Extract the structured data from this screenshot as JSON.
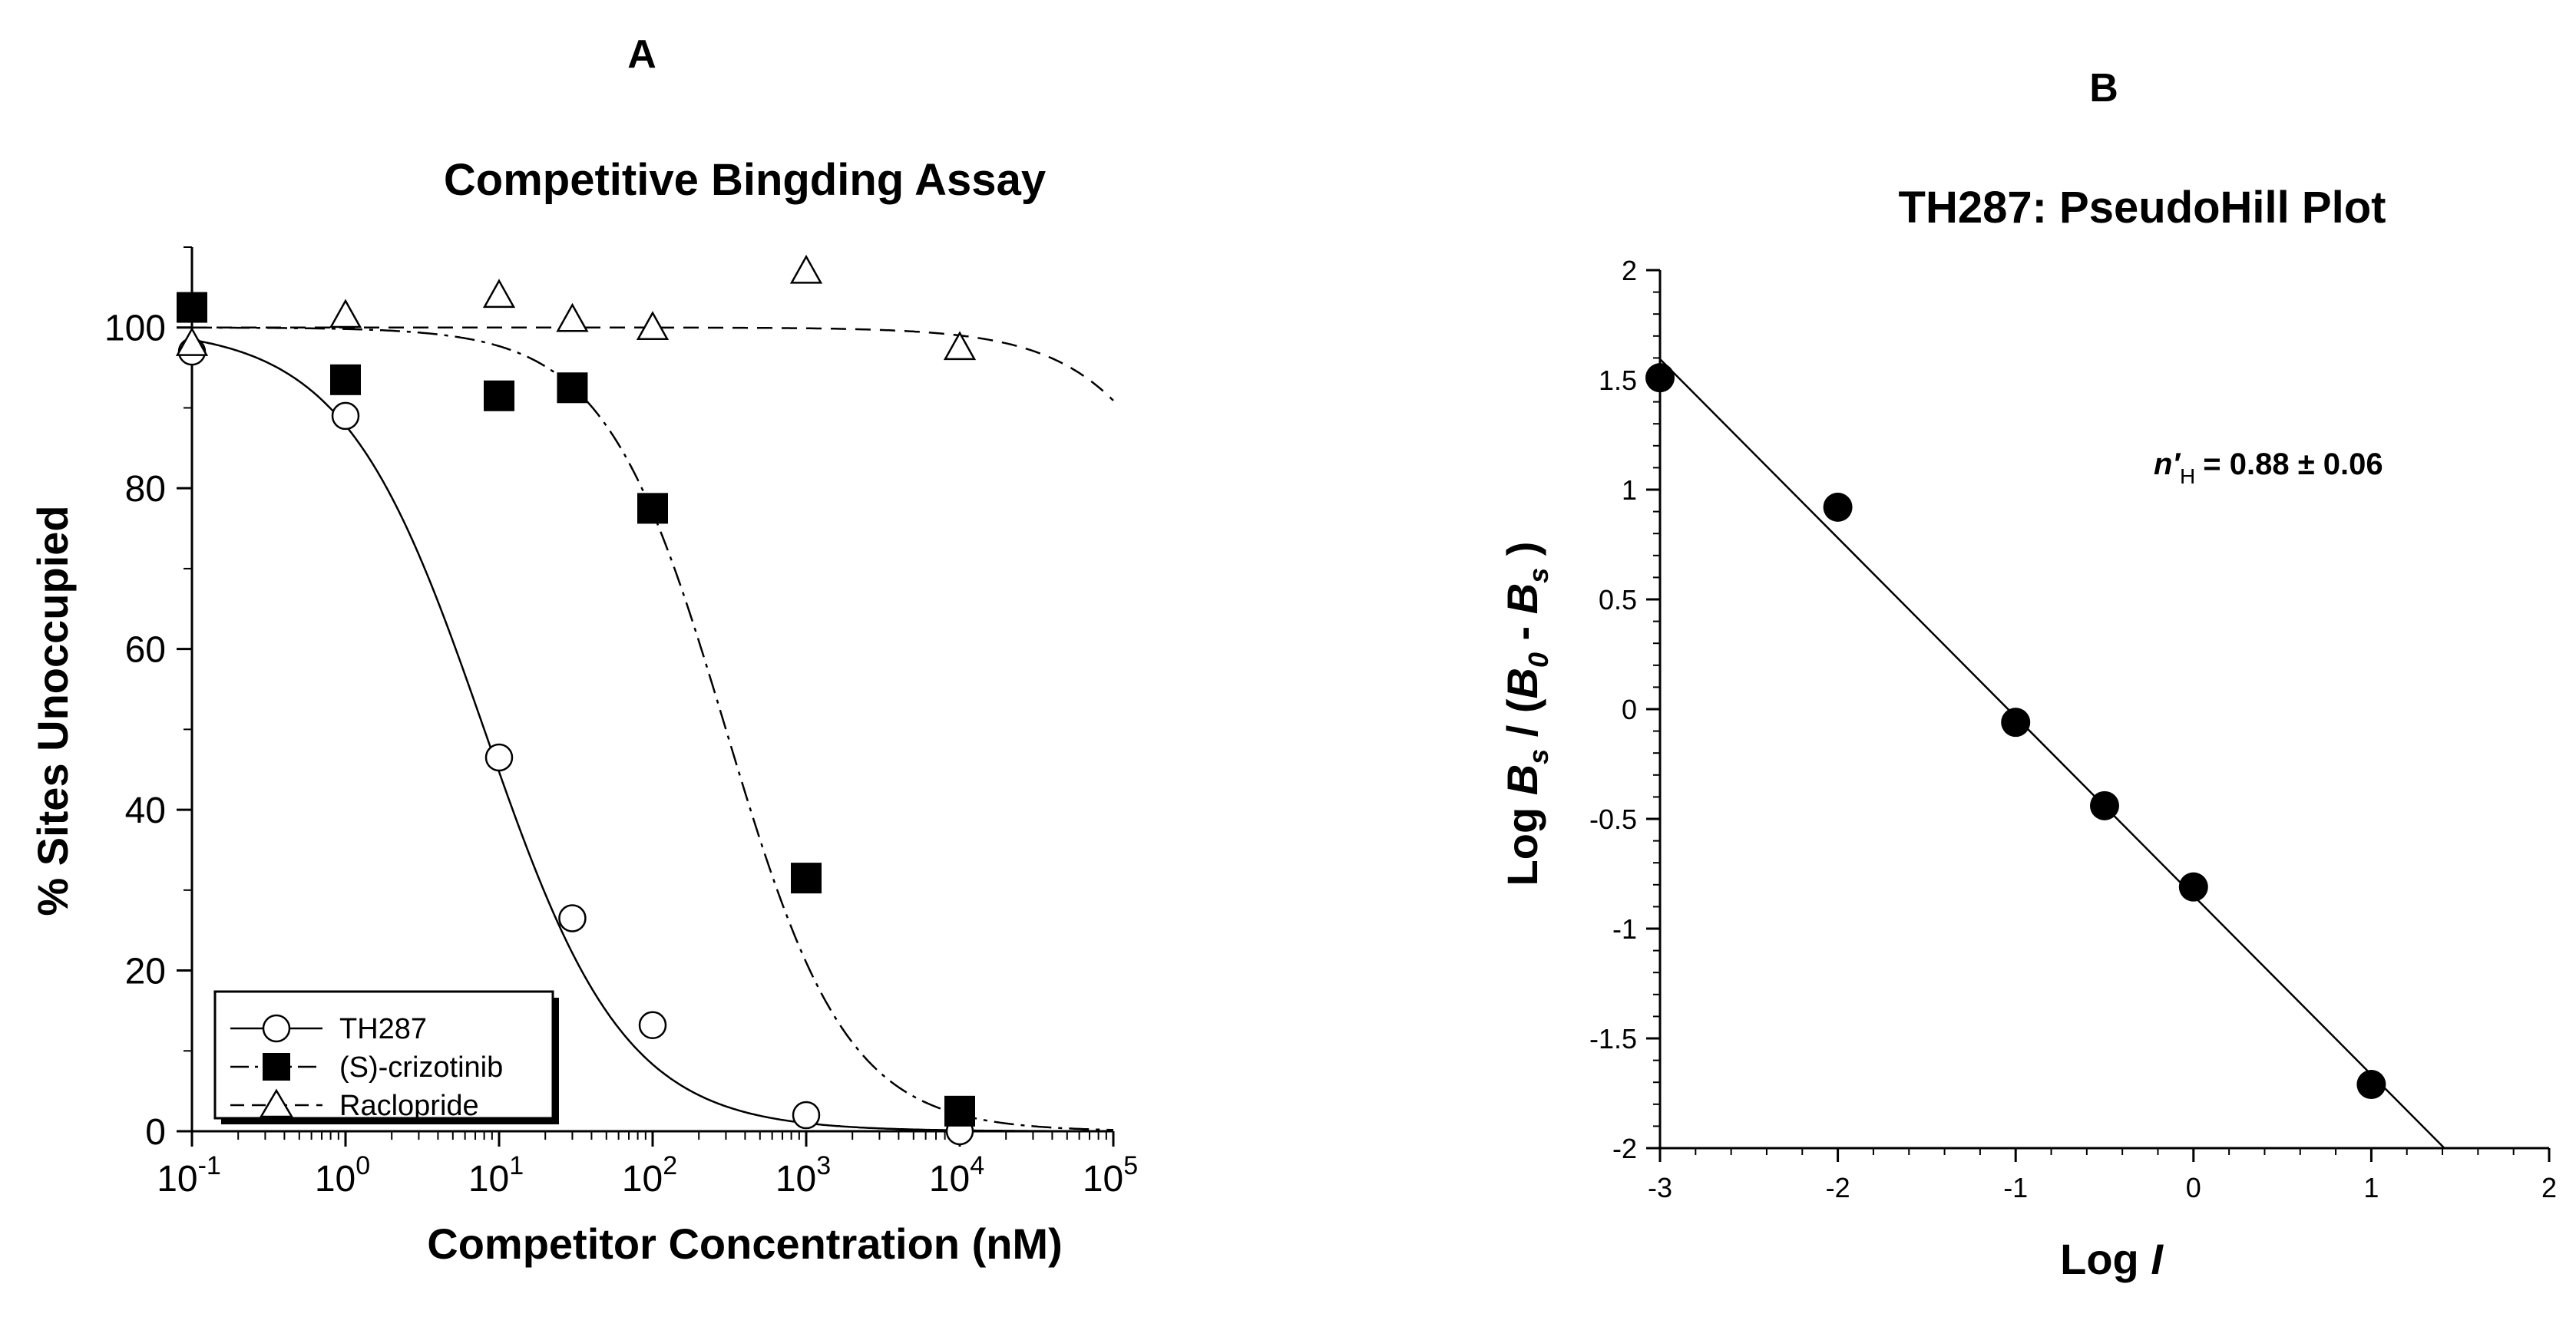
{
  "chart_data": [
    {
      "panel": "A",
      "type": "scatter",
      "title": "Competitive Bingding Assay",
      "xlabel": "Competitor Concentration (nM)",
      "ylabel": "% Sites Unoccupied",
      "x_scale": "log",
      "xlim": [
        0.1,
        100000
      ],
      "ylim": [
        0,
        110
      ],
      "x_ticks": [
        {
          "base": "10",
          "exp": "-1"
        },
        {
          "base": "10",
          "exp": "0"
        },
        {
          "base": "10",
          "exp": "1"
        },
        {
          "base": "10",
          "exp": "2"
        },
        {
          "base": "10",
          "exp": "3"
        },
        {
          "base": "10",
          "exp": "4"
        },
        {
          "base": "10",
          "exp": "5"
        }
      ],
      "y_ticks": [
        "0",
        "20",
        "40",
        "60",
        "80",
        "100"
      ],
      "legend_position": "bottom-left",
      "grid": false,
      "series": [
        {
          "name": "TH287",
          "marker": "open-circle",
          "line": "solid",
          "x": [
            0.1,
            1,
            10,
            30,
            100,
            1000,
            10000
          ],
          "y": [
            97,
            89,
            46.5,
            26.5,
            13.2,
            2,
            0
          ],
          "fit": {
            "ic50": 8,
            "hill": 0.95
          }
        },
        {
          "name": "(S)-crizotinib",
          "marker": "filled-square",
          "line": "dash-dot",
          "x": [
            0.1,
            1,
            10,
            30,
            100,
            1000,
            10000
          ],
          "y": [
            102.5,
            93.5,
            91.5,
            92.5,
            77.5,
            31.5,
            2.5
          ],
          "fit": {
            "ic50": 300,
            "hill": 1.1
          }
        },
        {
          "name": "Raclopride",
          "marker": "open-triangle",
          "line": "dashed",
          "x": [
            0.1,
            1,
            10,
            30,
            100,
            1000,
            10000
          ],
          "y": [
            98,
            101.5,
            104,
            101,
            100,
            107,
            97.5
          ],
          "fit": {
            "ic50": 1000000,
            "hill": 1.0
          }
        }
      ]
    },
    {
      "panel": "B",
      "type": "scatter",
      "title": "TH287: PseudoHill Plot",
      "xlabel": "Log I",
      "ylabel": "Log Bs / (B0 - Bs)",
      "xlim": [
        -3,
        2
      ],
      "ylim": [
        -2,
        2
      ],
      "x_ticks": [
        "-3",
        "-2",
        "-1",
        "0",
        "1",
        "2"
      ],
      "y_ticks": [
        "2",
        "1.5",
        "1",
        "0.5",
        "0",
        "-0.5",
        "-1",
        "-1.5",
        "-2"
      ],
      "grid": false,
      "annotation": {
        "text": "n′H = 0.88 ± 0.06",
        "symbol": "n′",
        "subscript": "H",
        "value": "= 0.88 ± 0.06"
      },
      "series": [
        {
          "marker": "filled-circle",
          "x": [
            -3,
            -2,
            -1,
            -0.5,
            0,
            1
          ],
          "y": [
            1.51,
            0.92,
            -0.06,
            -0.44,
            -0.81,
            -1.71
          ],
          "fit_line": {
            "slope": -0.815,
            "intercept": -0.85
          }
        }
      ]
    }
  ],
  "colors": {
    "ink": "#000000",
    "background": "#ffffff",
    "marker_fill": "#000000",
    "open_marker_fill": "#ffffff"
  }
}
